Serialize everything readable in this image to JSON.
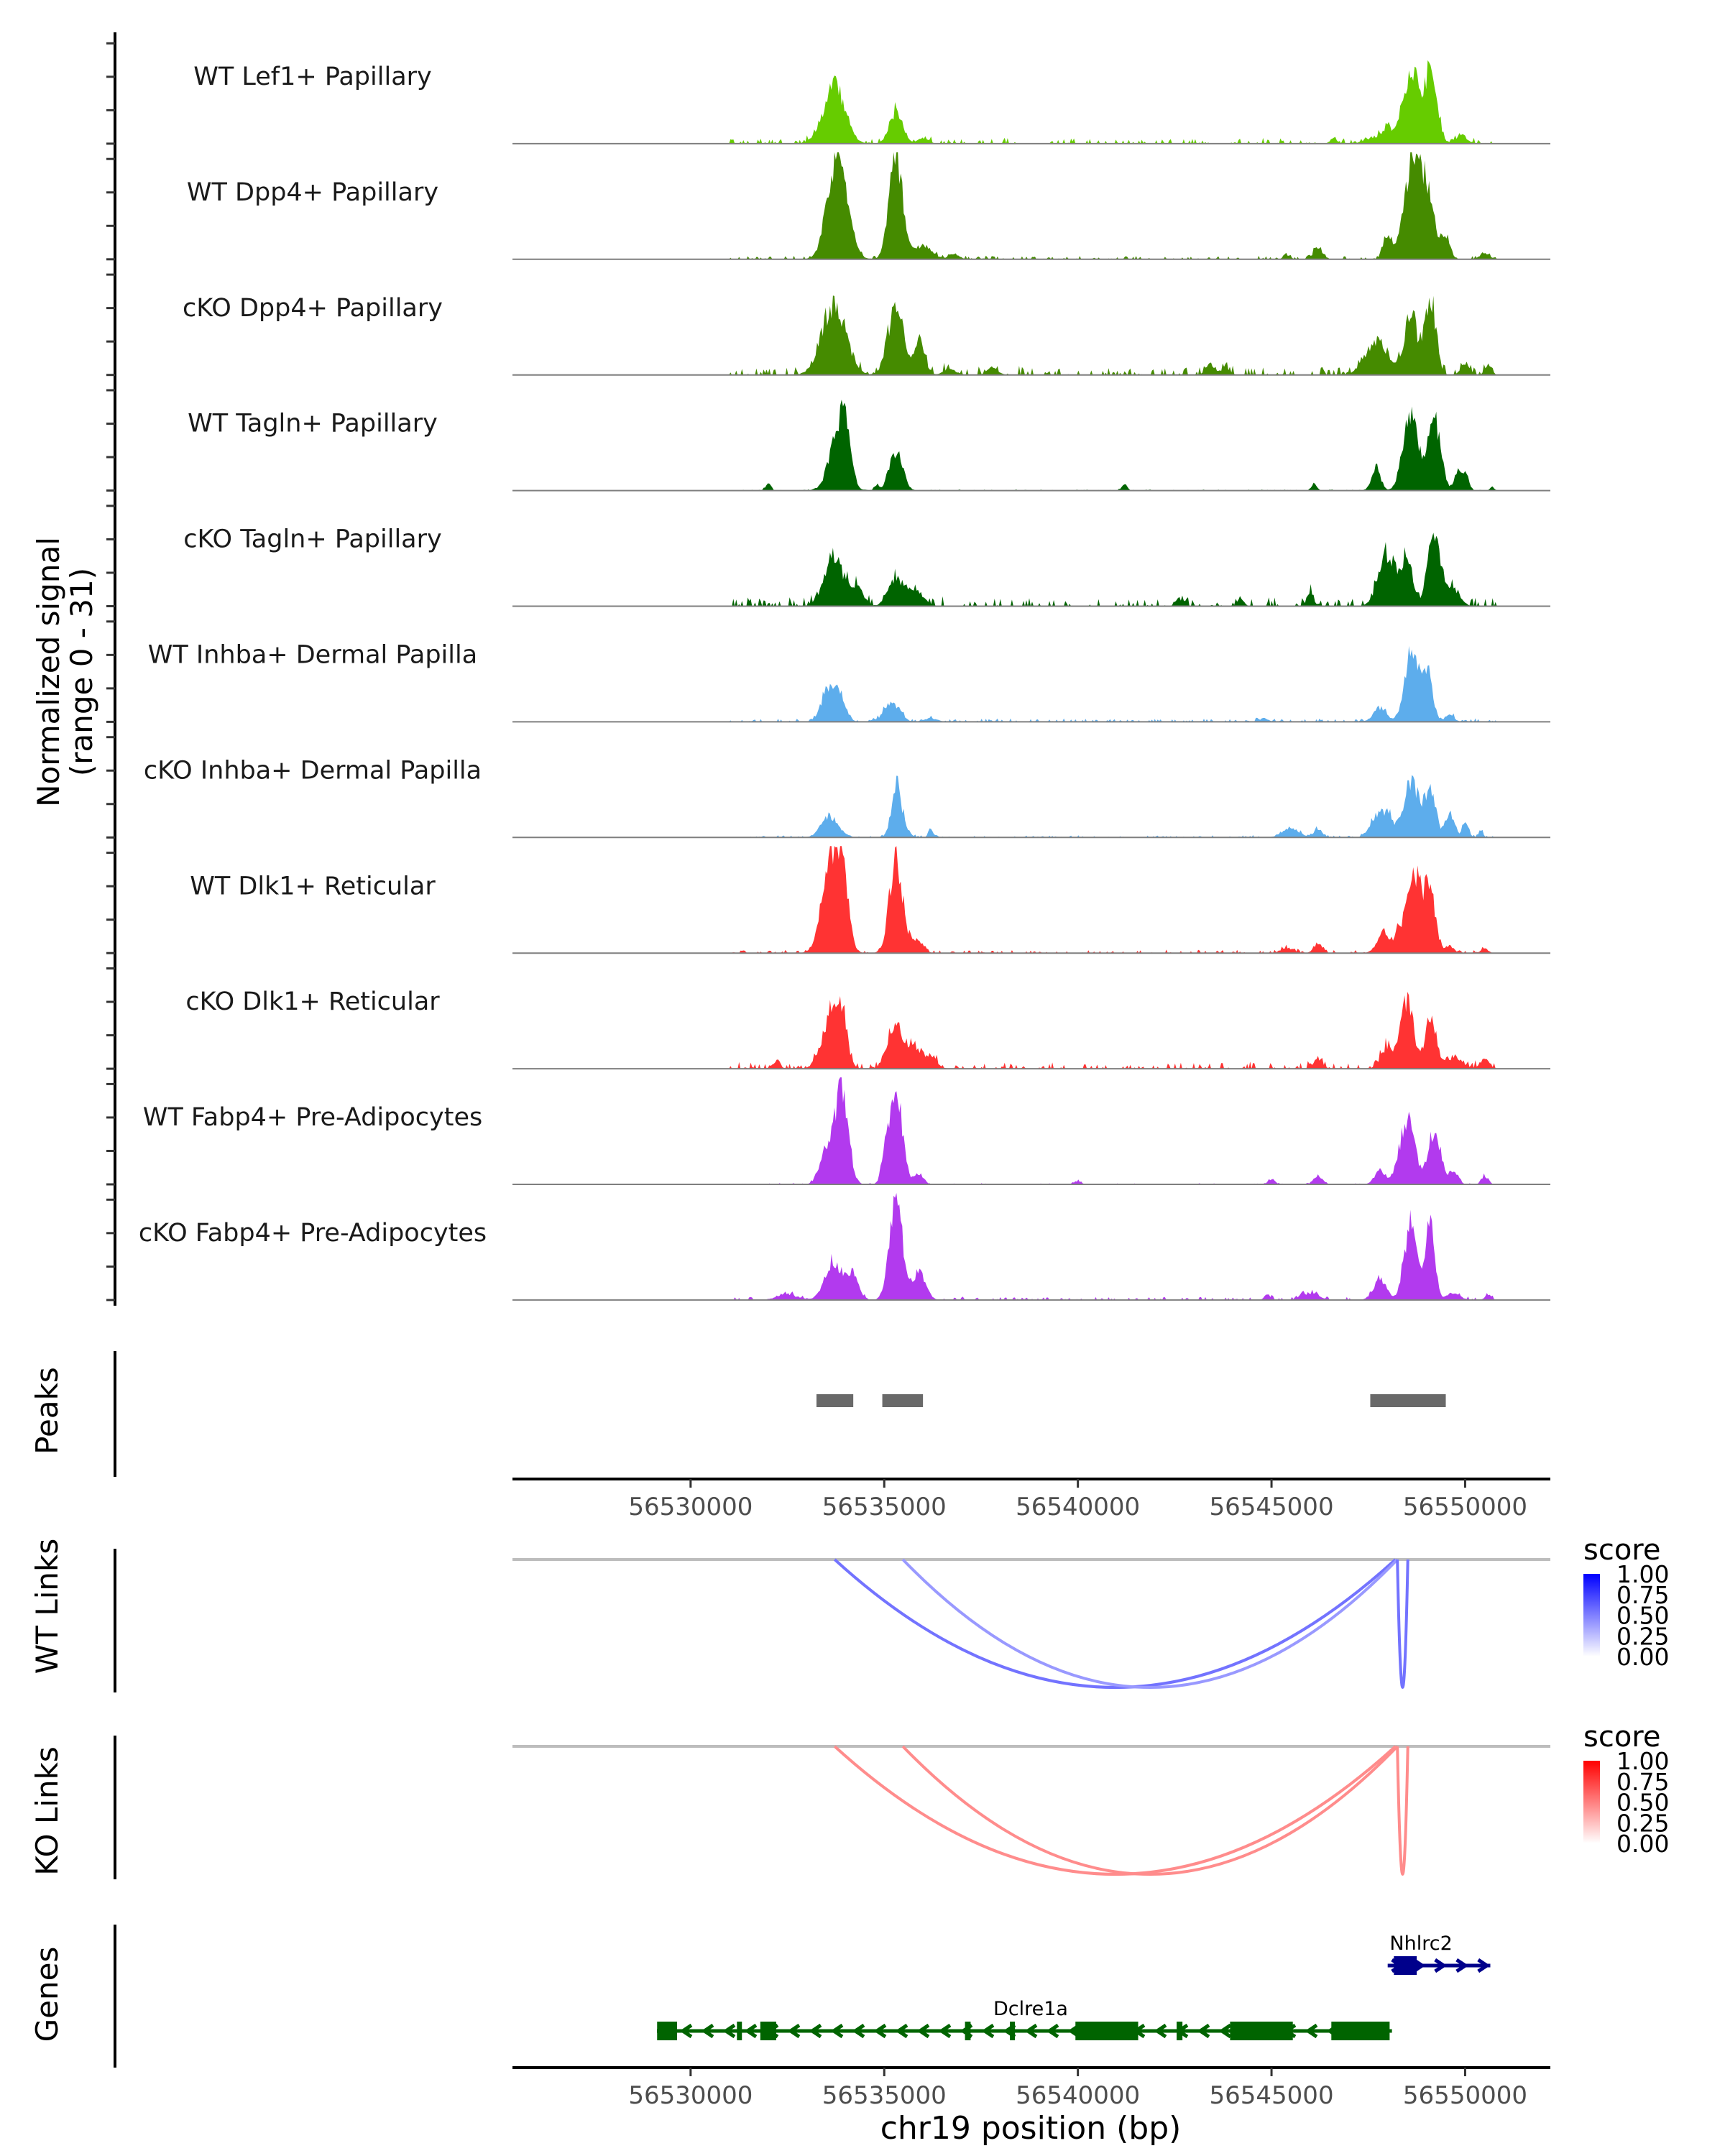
{
  "chart_data": {
    "type": "area",
    "title": "",
    "chromosome": "chr19",
    "xlabel": "chr19 position (bp)",
    "xlim": [
      56525400,
      56552200
    ],
    "x_ticks": [
      56530000,
      56535000,
      56540000,
      56545000,
      56550000
    ],
    "x_tick_labels": [
      "56530000",
      "56535000",
      "56540000",
      "56545000",
      "56550000"
    ],
    "coverage": {
      "ylabel_line1": "Normalized signal",
      "ylabel_line2": "(range 0 - 31)",
      "ylim": [
        0,
        31
      ],
      "tracks": [
        {
          "name": "WT Lef1+ Papillary",
          "color": "#66CC00",
          "peaks": [
            [
              56533700,
              16,
              500
            ],
            [
              56535300,
              9,
              300
            ],
            [
              56536000,
              1.5,
              250
            ],
            [
              56546600,
              1.5,
              150
            ],
            [
              56548000,
              4,
              300
            ],
            [
              56548600,
              22,
              350
            ],
            [
              56549100,
              20,
              300
            ],
            [
              56549900,
              2.5,
              250
            ],
            [
              56547600,
              1.5,
              400
            ]
          ],
          "noise": 0.5
        },
        {
          "name": "WT Dpp4+ Papillary",
          "color": "#458B00",
          "peaks": [
            [
              56533800,
              31,
              450
            ],
            [
              56535300,
              31,
              300
            ],
            [
              56536000,
              4,
              400
            ],
            [
              56536800,
              1.5,
              250
            ],
            [
              56548000,
              7,
              200
            ],
            [
              56548600,
              25,
              350
            ],
            [
              56549000,
              20,
              350
            ],
            [
              56549500,
              6,
              200
            ],
            [
              56550500,
              2,
              200
            ],
            [
              56546200,
              3.5,
              200
            ],
            [
              56545400,
              1.2,
              150
            ]
          ],
          "noise": 0.3
        },
        {
          "name": "cKO Dpp4+ Papillary",
          "color": "#458B00",
          "peaks": [
            [
              56533700,
              20,
              550
            ],
            [
              56535300,
              20,
              350
            ],
            [
              56535900,
              10,
              250
            ],
            [
              56536700,
              1.5,
              300
            ],
            [
              56537800,
              2,
              250
            ],
            [
              56543400,
              3,
              200
            ],
            [
              56543800,
              2,
              200
            ],
            [
              56547700,
              10,
              500
            ],
            [
              56548600,
              17,
              300
            ],
            [
              56549100,
              22,
              250
            ],
            [
              56550000,
              3,
              200
            ],
            [
              56550600,
              3,
              150
            ]
          ],
          "noise": 0.8
        },
        {
          "name": "WT Tagln+ Papillary",
          "color": "#006400",
          "peaks": [
            [
              56532000,
              2,
              120
            ],
            [
              56533800,
              16,
              400
            ],
            [
              56534000,
              12,
              250
            ],
            [
              56535300,
              11,
              300
            ],
            [
              56534800,
              1.5,
              100
            ],
            [
              56541200,
              2,
              120
            ],
            [
              56546100,
              2,
              120
            ],
            [
              56547700,
              7,
              200
            ],
            [
              56548600,
              22,
              350
            ],
            [
              56549200,
              21,
              300
            ],
            [
              56549800,
              5,
              150
            ],
            [
              56550000,
              5,
              150
            ],
            [
              56550700,
              1,
              100
            ]
          ],
          "noise": 0.1
        },
        {
          "name": "cKO Tagln+ Papillary",
          "color": "#006400",
          "peaks": [
            [
              56533700,
              14,
              450
            ],
            [
              56534300,
              5,
              300
            ],
            [
              56535300,
              8,
              350
            ],
            [
              56535800,
              5,
              350
            ],
            [
              56546000,
              4,
              150
            ],
            [
              56548000,
              15,
              400
            ],
            [
              56548500,
              13,
              250
            ],
            [
              56549200,
              21,
              300
            ],
            [
              56549700,
              5,
              300
            ],
            [
              56542600,
              2,
              150
            ],
            [
              56544200,
              2.5,
              150
            ]
          ],
          "noise": 0.8
        },
        {
          "name": "WT Inhba+ Dermal Papilla",
          "color": "#5DADEC",
          "peaks": [
            [
              56533500,
              7,
              300
            ],
            [
              56533800,
              9,
              300
            ],
            [
              56535200,
              5.5,
              350
            ],
            [
              56536200,
              1,
              300
            ],
            [
              56548600,
              20,
              300
            ],
            [
              56549000,
              16,
              250
            ],
            [
              56547800,
              4,
              300
            ],
            [
              56549600,
              2,
              200
            ],
            [
              56544800,
              1,
              200
            ]
          ],
          "noise": 0.3
        },
        {
          "name": "cKO Inhba+ Dermal Papilla",
          "color": "#5DADEC",
          "peaks": [
            [
              56533600,
              6,
              400
            ],
            [
              56535300,
              12,
              200
            ],
            [
              56535400,
              5,
              300
            ],
            [
              56536200,
              3,
              100
            ],
            [
              56545500,
              2.5,
              400
            ],
            [
              56546200,
              2.5,
              200
            ],
            [
              56547700,
              6,
              300
            ],
            [
              56548000,
              6,
              250
            ],
            [
              56548600,
              16,
              350
            ],
            [
              56549100,
              14,
              250
            ],
            [
              56549600,
              7,
              200
            ],
            [
              56550000,
              4,
              150
            ],
            [
              56550400,
              2,
              100
            ]
          ],
          "noise": 0.2
        },
        {
          "name": "WT Dlk1+ Reticular",
          "color": "#FF3333",
          "peaks": [
            [
              56533600,
              24,
              400
            ],
            [
              56533900,
              20,
              300
            ],
            [
              56535300,
              27,
              300
            ],
            [
              56535800,
              4,
              300
            ],
            [
              56547900,
              6,
              300
            ],
            [
              56548300,
              5,
              200
            ],
            [
              56548700,
              22,
              350
            ],
            [
              56549100,
              16,
              250
            ],
            [
              56549600,
              2,
              200
            ],
            [
              56550500,
              1.5,
              150
            ],
            [
              56546200,
              2.5,
              200
            ],
            [
              56545400,
              1.5,
              300
            ]
          ],
          "noise": 0.3
        },
        {
          "name": "cKO Dlk1+ Reticular",
          "color": "#FF3333",
          "peaks": [
            [
              56533600,
              14,
              400
            ],
            [
              56533900,
              14,
              250
            ],
            [
              56535300,
              12,
              350
            ],
            [
              56535800,
              6,
              300
            ],
            [
              56536200,
              3,
              300
            ],
            [
              56532200,
              1.5,
              200
            ],
            [
              56546200,
              3,
              200
            ],
            [
              56548000,
              6,
              300
            ],
            [
              56548500,
              19,
              300
            ],
            [
              56549100,
              14,
              250
            ],
            [
              56549700,
              3,
              400
            ],
            [
              56550500,
              3,
              200
            ]
          ],
          "noise": 0.6
        },
        {
          "name": "WT Fabp4+ Pre-Adipocytes",
          "color": "#B23AEE",
          "peaks": [
            [
              56533500,
              10,
              300
            ],
            [
              56533900,
              29,
              300
            ],
            [
              56535300,
              27,
              300
            ],
            [
              56535000,
              6,
              150
            ],
            [
              56535900,
              3,
              200
            ],
            [
              56540000,
              1,
              150
            ],
            [
              56545000,
              1.5,
              150
            ],
            [
              56546200,
              2.5,
              200
            ],
            [
              56547800,
              4,
              250
            ],
            [
              56548500,
              18,
              350
            ],
            [
              56549200,
              15,
              300
            ],
            [
              56549700,
              4,
              200
            ],
            [
              56550500,
              2.5,
              150
            ]
          ],
          "noise": 0.1
        },
        {
          "name": "cKO Fabp4+ Pre-Adipocytes",
          "color": "#B23AEE",
          "peaks": [
            [
              56533700,
              11,
              400
            ],
            [
              56534200,
              7,
              250
            ],
            [
              56535300,
              28,
              300
            ],
            [
              56535900,
              8,
              300
            ],
            [
              56532500,
              1.5,
              500
            ],
            [
              56544900,
              1.5,
              150
            ],
            [
              56546000,
              2,
              400
            ],
            [
              56547800,
              6,
              300
            ],
            [
              56548600,
              22,
              300
            ],
            [
              56549100,
              24,
              200
            ],
            [
              56549700,
              2,
              300
            ],
            [
              56550600,
              1.5,
              150
            ]
          ],
          "noise": 0.3
        }
      ]
    },
    "peaks": {
      "label": "Peaks",
      "color": "#696969",
      "regions": [
        [
          56533250,
          56534200
        ],
        [
          56534950,
          56536000
        ],
        [
          56547550,
          56549500
        ]
      ]
    },
    "links": [
      {
        "label": "WT Links",
        "legend_title": "score",
        "low_color": "#FFFFFF",
        "high_color": "#0000FF",
        "legend_ticks": [
          "1.00",
          "0.75",
          "0.50",
          "0.25",
          "0.00"
        ],
        "arcs": [
          {
            "start": 56533720,
            "end": 56548200,
            "score": 0.55
          },
          {
            "start": 56535480,
            "end": 56548250,
            "score": 0.4
          },
          {
            "start": 56548250,
            "end": 56548520,
            "score": 0.55
          }
        ]
      },
      {
        "label": "KO Links",
        "legend_title": "score",
        "low_color": "#FFFFFF",
        "high_color": "#FF0000",
        "legend_ticks": [
          "1.00",
          "0.75",
          "0.50",
          "0.25",
          "0.00"
        ],
        "arcs": [
          {
            "start": 56533720,
            "end": 56548200,
            "score": 0.45
          },
          {
            "start": 56535480,
            "end": 56548250,
            "score": 0.45
          },
          {
            "start": 56548250,
            "end": 56548520,
            "score": 0.45
          }
        ]
      }
    ],
    "genes": {
      "label": "Genes",
      "items": [
        {
          "name": "Nhlrc2",
          "strand": "+",
          "color": "#00008B",
          "start": 56548000,
          "end": 56550650,
          "exons": [
            [
              56548160,
              56548750
            ]
          ]
        },
        {
          "name": "Dclre1a",
          "strand": "-",
          "color": "#006400",
          "start": 56529130,
          "end": 56548110,
          "exons": [
            [
              56529135,
              56529650
            ],
            [
              56531196,
              56531325
            ],
            [
              56531800,
              56532210
            ],
            [
              56537085,
              56537230
            ],
            [
              56538245,
              56538375
            ],
            [
              56539937,
              56541557
            ],
            [
              56542550,
              56542700
            ],
            [
              56543930,
              56545550
            ],
            [
              56546545,
              56548050
            ]
          ]
        }
      ]
    }
  }
}
